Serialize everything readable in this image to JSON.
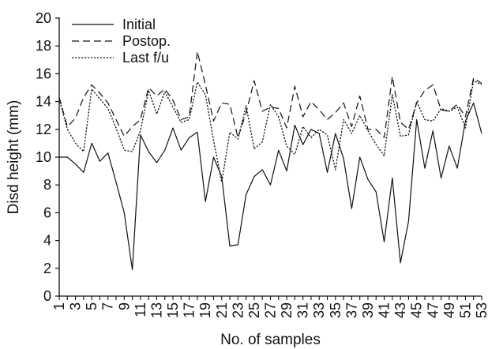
{
  "chart_data": {
    "type": "line",
    "xlabel": "No. of samples",
    "ylabel": "Disd height (mm)",
    "xlim": [
      1,
      53
    ],
    "ylim": [
      0,
      20
    ],
    "yticks": [
      0,
      2,
      4,
      6,
      8,
      10,
      12,
      14,
      16,
      18,
      20
    ],
    "xticks": [
      1,
      3,
      5,
      7,
      9,
      11,
      13,
      15,
      17,
      19,
      21,
      23,
      25,
      27,
      29,
      31,
      33,
      35,
      37,
      39,
      41,
      43,
      45,
      47,
      49,
      51,
      53
    ],
    "legend_position": "top-left",
    "grid": false,
    "x": [
      1,
      2,
      3,
      4,
      5,
      6,
      7,
      8,
      9,
      10,
      11,
      12,
      13,
      14,
      15,
      16,
      17,
      18,
      19,
      20,
      21,
      22,
      23,
      24,
      25,
      26,
      27,
      28,
      29,
      30,
      31,
      32,
      33,
      34,
      35,
      36,
      37,
      38,
      39,
      40,
      41,
      42,
      43,
      44,
      45,
      46,
      47,
      48,
      49,
      50,
      51,
      52,
      53
    ],
    "series": [
      {
        "name": "Initial",
        "style": "solid",
        "values": [
          10.0,
          10.0,
          9.5,
          8.9,
          11.0,
          9.7,
          10.3,
          8.2,
          6.0,
          1.9,
          11.6,
          10.4,
          9.6,
          10.5,
          12.1,
          10.5,
          11.4,
          11.8,
          6.8,
          10.0,
          8.6,
          3.6,
          3.7,
          7.3,
          8.6,
          9.1,
          8.0,
          10.5,
          9.0,
          12.3,
          10.9,
          12.0,
          11.7,
          8.9,
          11.7,
          9.9,
          6.3,
          10.0,
          8.4,
          7.5,
          3.9,
          8.5,
          2.4,
          5.4,
          12.7,
          9.2,
          11.9,
          8.5,
          10.8,
          9.2,
          12.6,
          13.9,
          11.7
        ]
      },
      {
        "name": "Postop.",
        "style": "dashed",
        "values": [
          14.3,
          12.2,
          12.8,
          14.3,
          15.2,
          14.6,
          13.9,
          12.7,
          11.5,
          12.2,
          12.7,
          15.0,
          14.4,
          14.9,
          14.1,
          12.7,
          12.9,
          17.6,
          15.2,
          12.6,
          13.9,
          13.8,
          11.4,
          13.2,
          15.5,
          13.3,
          13.6,
          13.5,
          12.1,
          15.1,
          12.9,
          14.0,
          13.4,
          12.7,
          13.2,
          13.9,
          12.2,
          14.4,
          12.0,
          12.0,
          11.4,
          15.8,
          12.5,
          12.0,
          13.9,
          14.8,
          15.2,
          13.4,
          13.3,
          13.8,
          12.9,
          15.7,
          15.3
        ]
      },
      {
        "name": "Last f/u",
        "style": "dotted",
        "values": [
          14.2,
          12.0,
          11.0,
          10.4,
          14.9,
          14.2,
          13.5,
          12.1,
          10.5,
          10.4,
          11.9,
          14.8,
          13.1,
          14.7,
          13.6,
          12.5,
          12.7,
          15.4,
          14.5,
          11.2,
          8.2,
          11.8,
          11.3,
          13.7,
          10.6,
          11.1,
          13.8,
          12.9,
          10.8,
          10.2,
          12.2,
          11.4,
          12.0,
          11.6,
          9.1,
          12.7,
          11.7,
          13.0,
          11.9,
          10.9,
          10.1,
          14.5,
          11.5,
          11.6,
          14.0,
          12.7,
          12.6,
          13.5,
          13.3,
          13.6,
          12.1,
          15.5,
          15.2
        ]
      }
    ]
  }
}
